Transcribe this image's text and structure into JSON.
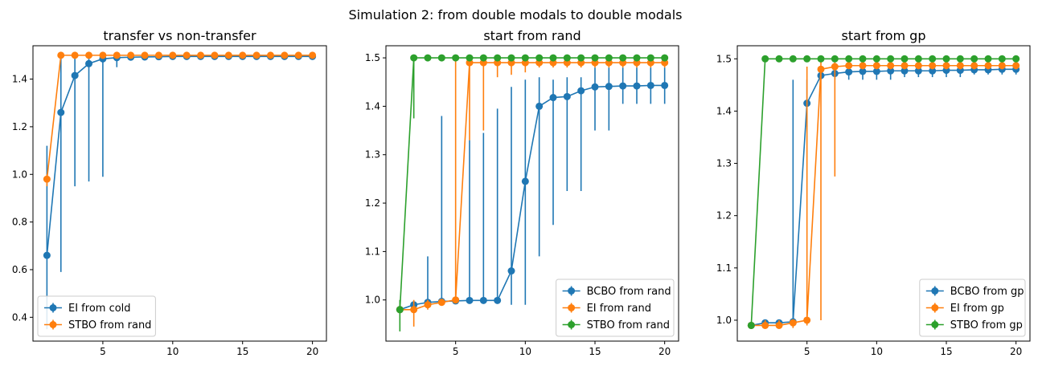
{
  "figure": {
    "suptitle": "Simulation 2: from double modals to double modals"
  },
  "colors": {
    "blue": "#1f77b4",
    "orange": "#ff7f0e",
    "green": "#2ca02c"
  },
  "chart_data": [
    {
      "type": "line",
      "title": "transfer vs non-transfer",
      "xlabel": "",
      "ylabel": "",
      "xlim": [
        0,
        21
      ],
      "ylim": [
        0.3,
        1.54
      ],
      "xticks": [
        5,
        10,
        15,
        20
      ],
      "yticks": [
        0.4,
        0.6,
        0.8,
        1.0,
        1.2,
        1.4
      ],
      "legend_position": "lower-left",
      "x": [
        1,
        2,
        3,
        4,
        5,
        6,
        7,
        8,
        9,
        10,
        11,
        12,
        13,
        14,
        15,
        16,
        17,
        18,
        19,
        20
      ],
      "series": [
        {
          "name": "EI from cold",
          "color": "#1f77b4",
          "values": [
            0.66,
            1.26,
            1.415,
            1.465,
            1.485,
            1.49,
            1.492,
            1.493,
            1.494,
            1.495,
            1.495,
            1.495,
            1.495,
            1.495,
            1.495,
            1.495,
            1.495,
            1.495,
            1.495,
            1.495
          ],
          "err_low": [
            0.35,
            0.59,
            0.95,
            0.97,
            0.99,
            1.45,
            1.49,
            1.49,
            1.49,
            1.49,
            1.49,
            1.49,
            1.49,
            1.49,
            1.49,
            1.49,
            1.49,
            1.49,
            1.49,
            1.49
          ],
          "err_high": [
            1.12,
            1.5,
            1.5,
            1.5,
            1.5,
            1.5,
            1.5,
            1.5,
            1.5,
            1.5,
            1.5,
            1.5,
            1.5,
            1.5,
            1.5,
            1.5,
            1.5,
            1.5,
            1.5,
            1.5
          ]
        },
        {
          "name": "STBO from rand",
          "color": "#ff7f0e",
          "values": [
            0.98,
            1.5,
            1.5,
            1.5,
            1.5,
            1.5,
            1.5,
            1.5,
            1.5,
            1.5,
            1.5,
            1.5,
            1.5,
            1.5,
            1.5,
            1.5,
            1.5,
            1.5,
            1.5,
            1.5
          ],
          "err_low": [
            0.95,
            1.5,
            1.5,
            1.5,
            1.5,
            1.5,
            1.5,
            1.5,
            1.5,
            1.5,
            1.5,
            1.5,
            1.5,
            1.5,
            1.5,
            1.5,
            1.5,
            1.5,
            1.5,
            1.5
          ],
          "err_high": [
            1.0,
            1.5,
            1.5,
            1.5,
            1.5,
            1.5,
            1.5,
            1.5,
            1.5,
            1.5,
            1.5,
            1.5,
            1.5,
            1.5,
            1.5,
            1.5,
            1.5,
            1.5,
            1.5,
            1.5
          ]
        }
      ]
    },
    {
      "type": "line",
      "title": "start from rand",
      "xlabel": "",
      "ylabel": "",
      "xlim": [
        0,
        21
      ],
      "ylim": [
        0.915,
        1.525
      ],
      "xticks": [
        5,
        10,
        15,
        20
      ],
      "yticks": [
        1.0,
        1.1,
        1.2,
        1.3,
        1.4,
        1.5
      ],
      "legend_position": "lower-right",
      "x": [
        1,
        2,
        3,
        4,
        5,
        6,
        7,
        8,
        9,
        10,
        11,
        12,
        13,
        14,
        15,
        16,
        17,
        18,
        19,
        20
      ],
      "series": [
        {
          "name": "BCBO from rand",
          "color": "#1f77b4",
          "values": [
            0.98,
            0.99,
            0.995,
            0.997,
            0.998,
            0.999,
            0.999,
            0.999,
            1.06,
            1.245,
            1.4,
            1.418,
            1.42,
            1.432,
            1.44,
            1.441,
            1.442,
            1.442,
            1.443,
            1.443
          ],
          "err_low": [
            0.98,
            0.99,
            0.99,
            0.995,
            0.995,
            0.995,
            0.995,
            0.995,
            0.99,
            0.99,
            1.09,
            1.155,
            1.225,
            1.225,
            1.35,
            1.35,
            1.405,
            1.405,
            1.405,
            1.405
          ],
          "err_high": [
            0.98,
            0.99,
            1.09,
            1.38,
            1.0,
            1.33,
            1.345,
            1.395,
            1.44,
            1.455,
            1.46,
            1.455,
            1.46,
            1.46,
            1.48,
            1.48,
            1.48,
            1.48,
            1.48,
            1.48
          ]
        },
        {
          "name": "EI from rand",
          "color": "#ff7f0e",
          "values": [
            0.98,
            0.98,
            0.99,
            0.995,
            1.0,
            1.49,
            1.49,
            1.49,
            1.49,
            1.49,
            1.49,
            1.49,
            1.49,
            1.49,
            1.49,
            1.49,
            1.49,
            1.49,
            1.49,
            1.49
          ],
          "err_low": [
            0.98,
            0.945,
            0.98,
            0.99,
            0.995,
            1.33,
            1.35,
            1.46,
            1.465,
            1.47,
            1.48,
            1.48,
            1.48,
            1.48,
            1.48,
            1.48,
            1.48,
            1.48,
            1.48,
            1.48
          ],
          "err_high": [
            0.98,
            1.0,
            1.0,
            1.0,
            1.5,
            1.5,
            1.5,
            1.5,
            1.5,
            1.5,
            1.5,
            1.5,
            1.5,
            1.5,
            1.5,
            1.5,
            1.5,
            1.5,
            1.5,
            1.5
          ]
        },
        {
          "name": "STBO from rand",
          "color": "#2ca02c",
          "values": [
            0.98,
            1.5,
            1.5,
            1.5,
            1.5,
            1.5,
            1.5,
            1.5,
            1.5,
            1.5,
            1.5,
            1.5,
            1.5,
            1.5,
            1.5,
            1.5,
            1.5,
            1.5,
            1.5,
            1.5
          ],
          "err_low": [
            0.935,
            1.375,
            1.5,
            1.5,
            1.5,
            1.5,
            1.5,
            1.5,
            1.5,
            1.5,
            1.5,
            1.5,
            1.5,
            1.5,
            1.5,
            1.5,
            1.5,
            1.5,
            1.5,
            1.5
          ],
          "err_high": [
            1.0,
            1.5,
            1.5,
            1.5,
            1.5,
            1.5,
            1.5,
            1.5,
            1.5,
            1.5,
            1.5,
            1.5,
            1.5,
            1.5,
            1.5,
            1.5,
            1.5,
            1.5,
            1.5,
            1.5
          ]
        }
      ]
    },
    {
      "type": "line",
      "title": "start from gp",
      "xlabel": "",
      "ylabel": "",
      "xlim": [
        0,
        21
      ],
      "ylim": [
        0.96,
        1.525
      ],
      "xticks": [
        5,
        10,
        15,
        20
      ],
      "yticks": [
        1.0,
        1.1,
        1.2,
        1.3,
        1.4,
        1.5
      ],
      "legend_position": "lower-right",
      "x": [
        1,
        2,
        3,
        4,
        5,
        6,
        7,
        8,
        9,
        10,
        11,
        12,
        13,
        14,
        15,
        16,
        17,
        18,
        19,
        20
      ],
      "series": [
        {
          "name": "BCBO from gp",
          "color": "#1f77b4",
          "values": [
            0.99,
            0.995,
            0.995,
            0.997,
            1.415,
            1.468,
            1.472,
            1.475,
            1.476,
            1.476,
            1.477,
            1.477,
            1.477,
            1.477,
            1.478,
            1.478,
            1.479,
            1.479,
            1.48,
            1.48
          ],
          "err_low": [
            0.99,
            0.99,
            0.99,
            0.99,
            1.37,
            1.46,
            1.46,
            1.46,
            1.46,
            1.46,
            1.46,
            1.465,
            1.465,
            1.465,
            1.465,
            1.465,
            1.47,
            1.47,
            1.47,
            1.47
          ],
          "err_high": [
            0.99,
            1.0,
            1.0,
            1.46,
            1.46,
            1.48,
            1.485,
            1.49,
            1.49,
            1.49,
            1.49,
            1.49,
            1.49,
            1.49,
            1.49,
            1.49,
            1.49,
            1.49,
            1.49,
            1.49
          ]
        },
        {
          "name": "EI from gp",
          "color": "#ff7f0e",
          "values": [
            0.99,
            0.99,
            0.99,
            0.995,
            1.0,
            1.48,
            1.485,
            1.487,
            1.487,
            1.487,
            1.487,
            1.487,
            1.487,
            1.487,
            1.487,
            1.487,
            1.487,
            1.487,
            1.487,
            1.487
          ],
          "err_low": [
            0.99,
            0.985,
            0.985,
            0.985,
            0.99,
            1.0,
            1.275,
            1.48,
            1.48,
            1.48,
            1.48,
            1.48,
            1.48,
            1.48,
            1.48,
            1.48,
            1.48,
            1.48,
            1.48,
            1.48
          ],
          "err_high": [
            0.99,
            1.0,
            1.0,
            1.0,
            1.485,
            1.5,
            1.5,
            1.49,
            1.49,
            1.49,
            1.49,
            1.49,
            1.49,
            1.49,
            1.49,
            1.49,
            1.49,
            1.49,
            1.49,
            1.49
          ]
        },
        {
          "name": "STBO from gp",
          "color": "#2ca02c",
          "values": [
            0.99,
            1.5,
            1.5,
            1.5,
            1.5,
            1.5,
            1.5,
            1.5,
            1.5,
            1.5,
            1.5,
            1.5,
            1.5,
            1.5,
            1.5,
            1.5,
            1.5,
            1.5,
            1.5,
            1.5
          ],
          "err_low": [
            0.99,
            1.5,
            1.5,
            1.5,
            1.5,
            1.5,
            1.5,
            1.5,
            1.5,
            1.5,
            1.5,
            1.5,
            1.5,
            1.5,
            1.5,
            1.5,
            1.5,
            1.5,
            1.5,
            1.5
          ],
          "err_high": [
            0.99,
            1.5,
            1.5,
            1.5,
            1.5,
            1.5,
            1.5,
            1.5,
            1.5,
            1.5,
            1.5,
            1.5,
            1.5,
            1.5,
            1.5,
            1.5,
            1.5,
            1.5,
            1.5,
            1.5
          ]
        }
      ]
    }
  ]
}
